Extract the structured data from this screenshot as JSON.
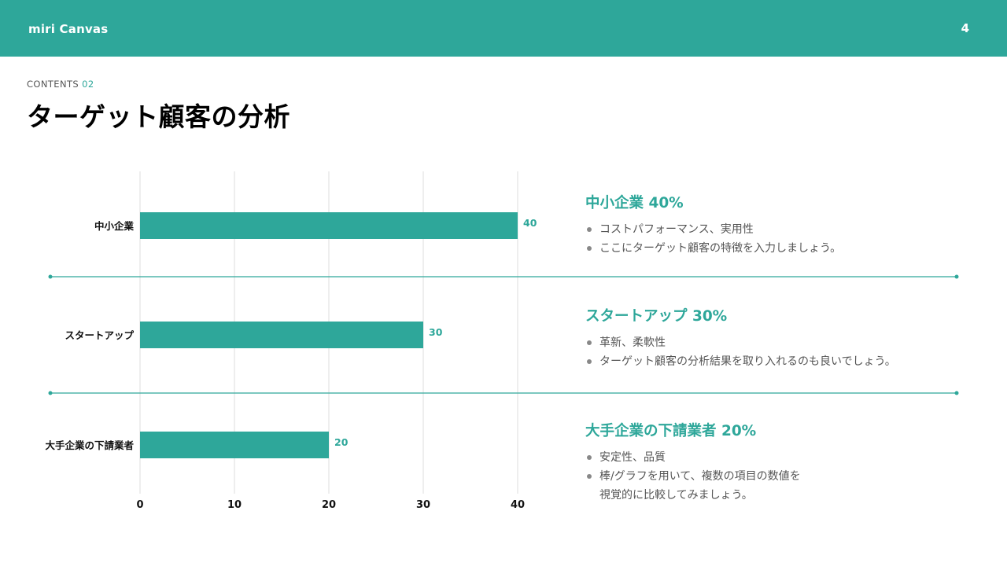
{
  "header": {
    "logo": "miri Canvas",
    "page_number": "4"
  },
  "section": {
    "label": "CONTENTS",
    "number": "02"
  },
  "title": "ターゲット顧客の分析",
  "chart_data": {
    "type": "bar",
    "orientation": "horizontal",
    "categories": [
      "中小企業",
      "スタートアップ",
      "大手企業の下請業者"
    ],
    "values": [
      40,
      30,
      20
    ],
    "x_ticks": [
      0,
      10,
      20,
      30,
      40
    ],
    "xlim": [
      0,
      40
    ],
    "grid": true,
    "bar_color": "#2ea79a",
    "label_color": "#2ea79a",
    "title": "",
    "xlabel": "",
    "ylabel": ""
  },
  "segments": [
    {
      "heading": "中小企業 40%",
      "bullets": [
        "コストパフォーマンス、実用性",
        "ここにターゲット顧客の特徴を入力しましょう。"
      ]
    },
    {
      "heading": "スタートアップ 30%",
      "bullets": [
        "革新、柔軟性",
        "ターゲット顧客の分析結果を取り入れるのも良いでしょう。"
      ]
    },
    {
      "heading": "大手企業の下請業者 20%",
      "bullets": [
        "安定性、品質",
        "棒/グラフを用いて、複数の項目の数値を\n視覚的に比較してみましょう。"
      ]
    }
  ],
  "colors": {
    "accent": "#2ea79a",
    "grid": "#dddddd",
    "text": "#111111",
    "muted": "#555555"
  }
}
